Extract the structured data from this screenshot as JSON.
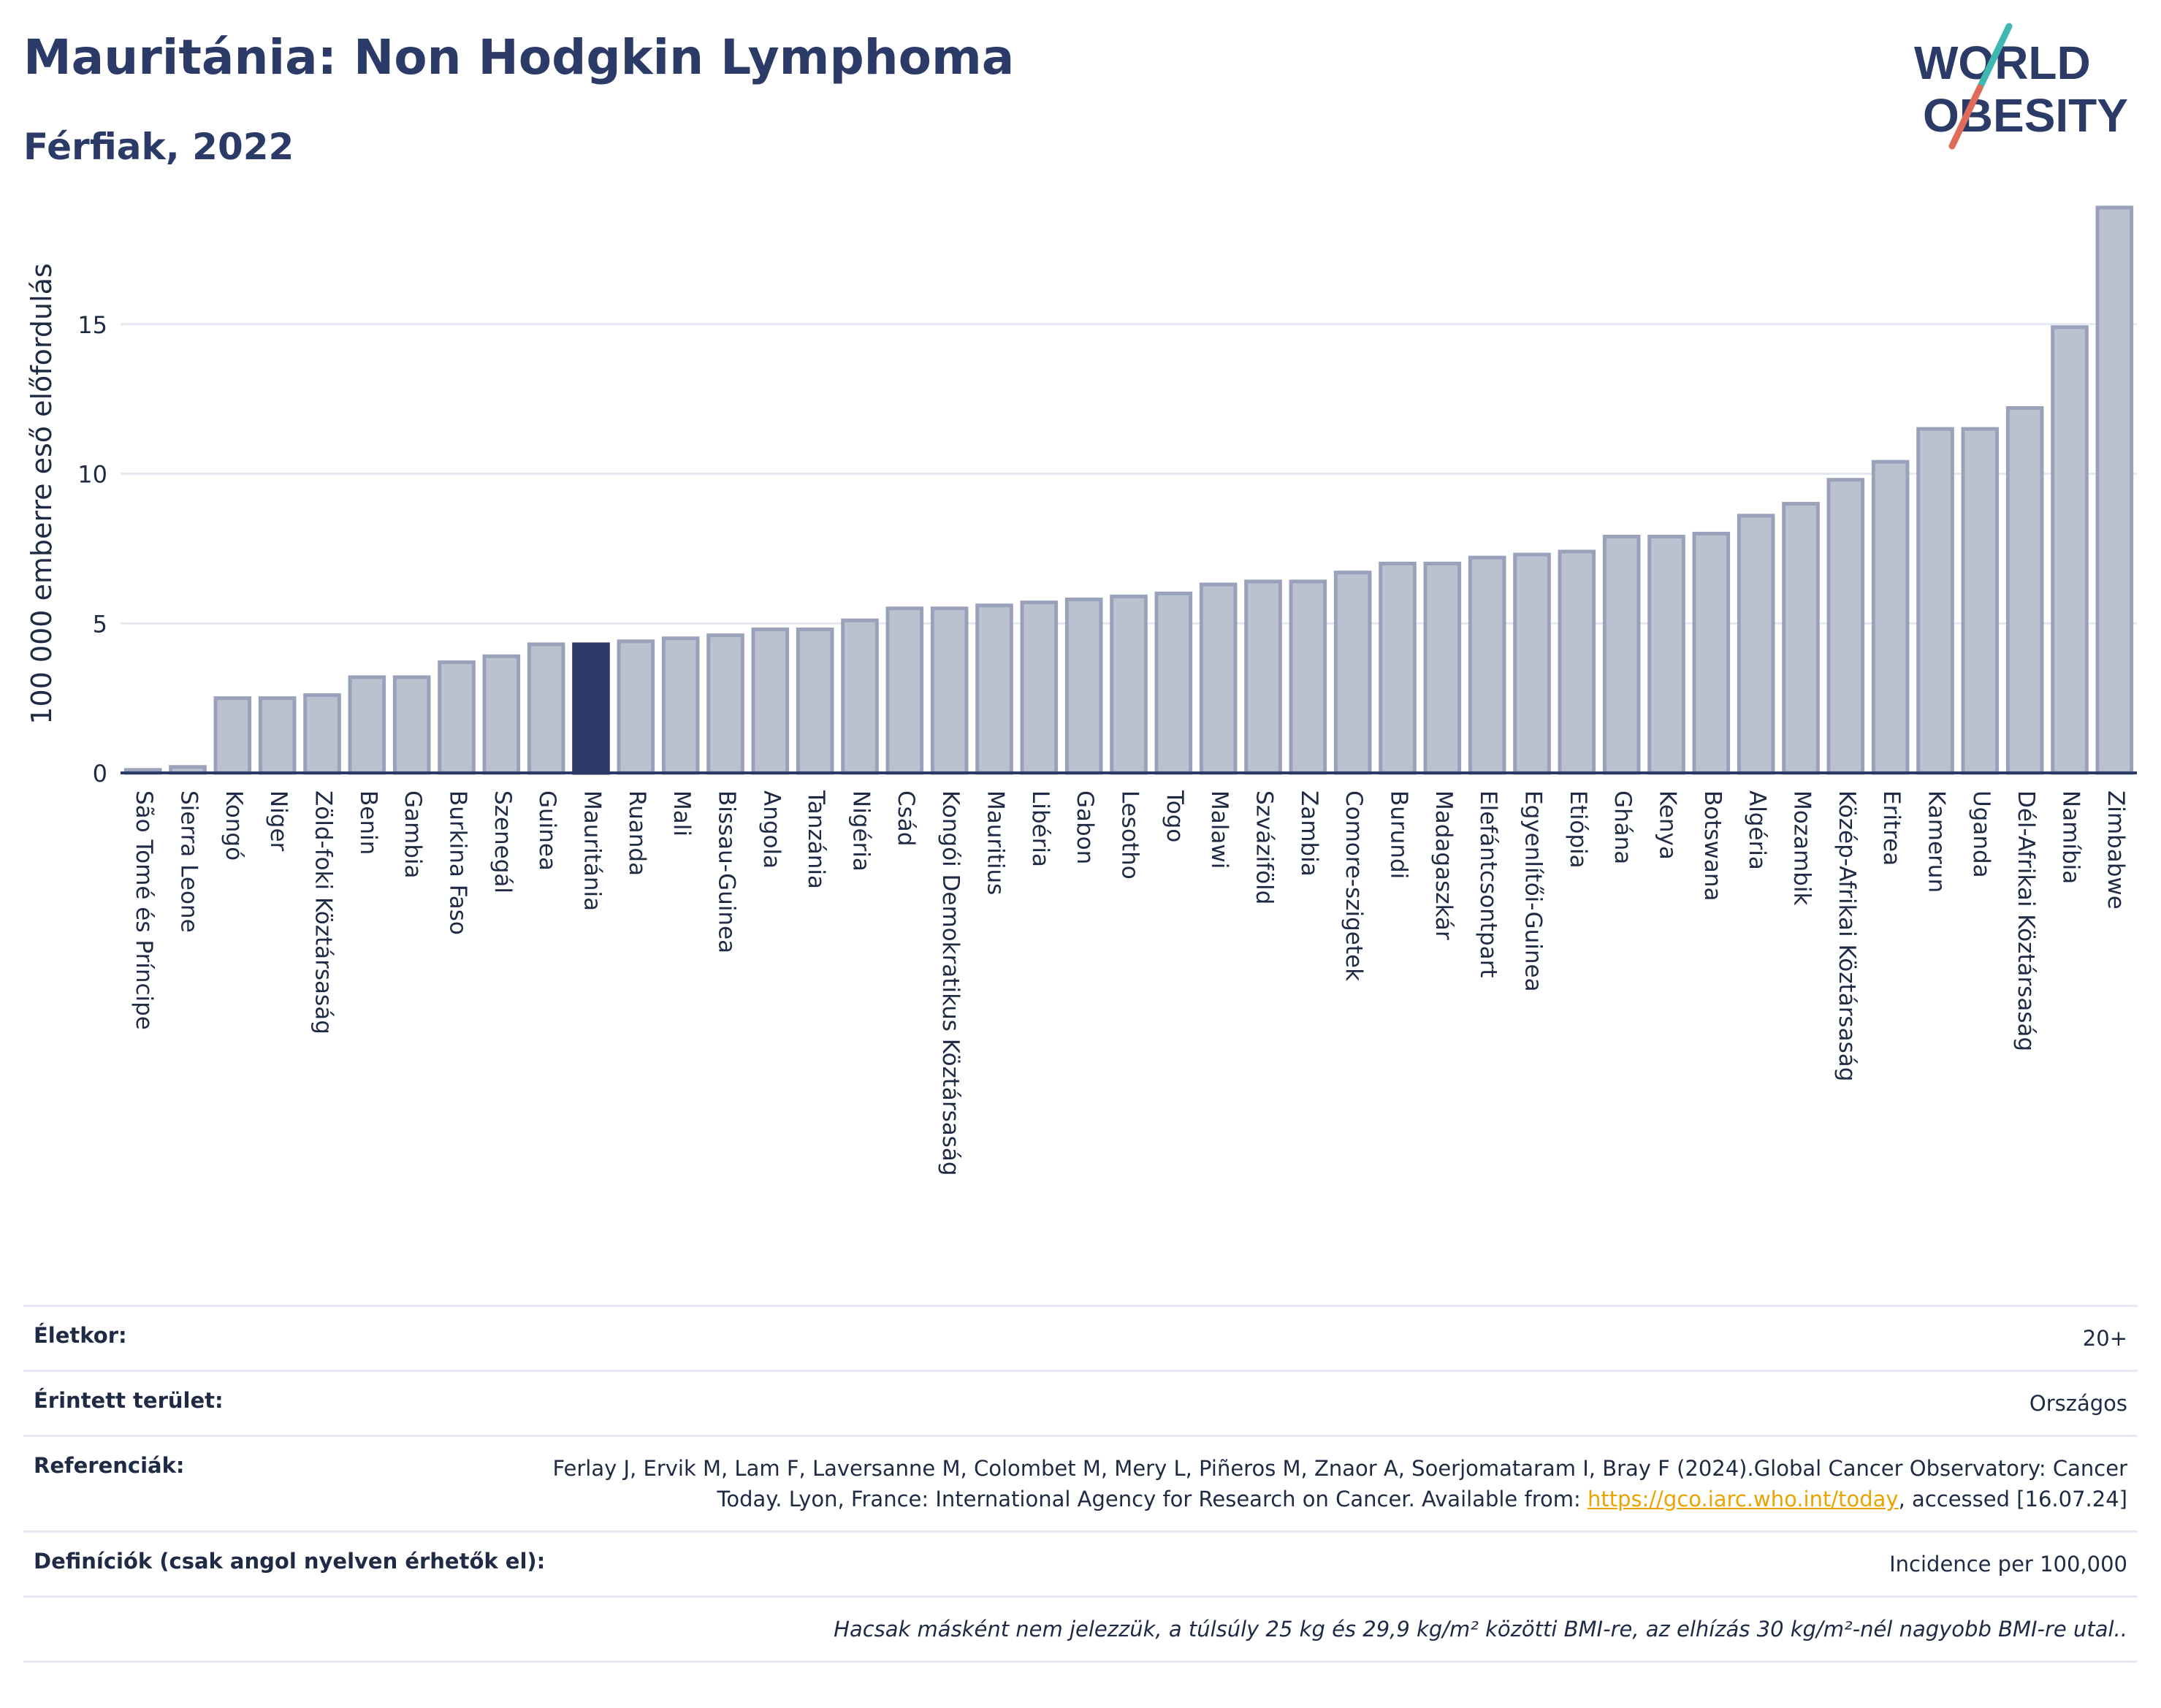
{
  "header": {
    "title": "Mauritánia: Non Hodgkin Lymphoma",
    "subtitle": "Férfiak, 2022",
    "logo_line1": "WORLD",
    "logo_line2": "OBESITY"
  },
  "colors": {
    "bar": "#bcc1d0",
    "bar_stroke": "#9aa2bb",
    "highlight": "#2b3a67",
    "title": "#2b3a67"
  },
  "chart_data": {
    "type": "bar",
    "title": "Mauritánia: Non Hodgkin Lymphoma",
    "subtitle": "Férfiak, 2022",
    "xlabel": "",
    "ylabel": "100 000 emberre eső előfordulás",
    "ylim": [
      0,
      19
    ],
    "yticks": [
      0,
      5,
      10,
      15
    ],
    "grid": true,
    "highlight": "Mauritánia",
    "categories": [
      "São Tomé és Príncipe",
      "Sierra Leone",
      "Kongó",
      "Niger",
      "Zöld-foki Köztársaság",
      "Benin",
      "Gambia",
      "Burkina Faso",
      "Szenegál",
      "Guinea",
      "Mauritánia",
      "Ruanda",
      "Mali",
      "Bissau-Guinea",
      "Angola",
      "Tanzánia",
      "Nigéria",
      "Csád",
      "Kongói Demokratikus Köztársaság",
      "Mauritius",
      "Libéria",
      "Gabon",
      "Lesotho",
      "Togo",
      "Malawi",
      "Szváziföld",
      "Zambia",
      "Comore-szigetek",
      "Burundi",
      "Madagaszkár",
      "Elefántcsontpart",
      "Egyenlítői-Guinea",
      "Etiópia",
      "Ghána",
      "Kenya",
      "Botswana",
      "Algéria",
      "Mozambik",
      "Közép-Afrikai Köztársaság",
      "Eritrea",
      "Kamerun",
      "Uganda",
      "Dél-Afrikai Köztársaság",
      "Namíbia",
      "Zimbabwe"
    ],
    "values": [
      0.1,
      0.2,
      2.5,
      2.5,
      2.6,
      3.2,
      3.2,
      3.7,
      3.9,
      4.3,
      4.3,
      4.4,
      4.5,
      4.6,
      4.8,
      4.8,
      5.1,
      5.5,
      5.5,
      5.6,
      5.7,
      5.8,
      5.9,
      6.0,
      6.3,
      6.4,
      6.4,
      6.7,
      7.0,
      7.0,
      7.2,
      7.3,
      7.4,
      7.9,
      7.9,
      8.0,
      8.6,
      9.0,
      9.8,
      10.4,
      11.5,
      11.5,
      12.2,
      14.9,
      18.9
    ]
  },
  "meta": {
    "age_label": "Életkor:",
    "age_value": "20+",
    "area_label": "Érintett terület:",
    "area_value": "Országos",
    "refs_label": "Referenciák:",
    "refs_text_before": "Ferlay J, Ervik M, Lam F, Laversanne M, Colombet M, Mery L, Piñeros M, Znaor A, Soerjomataram I, Bray F (2024).Global Cancer Observatory: Cancer Today. Lyon, France: International Agency for Research on Cancer. Available from: ",
    "refs_link": "https://gco.iarc.who.int/today",
    "refs_text_after": ", accessed [16.07.24]",
    "defs_label": "Definíciók (csak angol nyelven érhetők el):",
    "defs_value": "Incidence per 100,000",
    "note": "Hacsak másként nem jelezzük, a túlsúly 25 kg és 29,9 kg/m² közötti BMI-re, az elhízás 30 kg/m²-nél nagyobb BMI-re utal.."
  }
}
